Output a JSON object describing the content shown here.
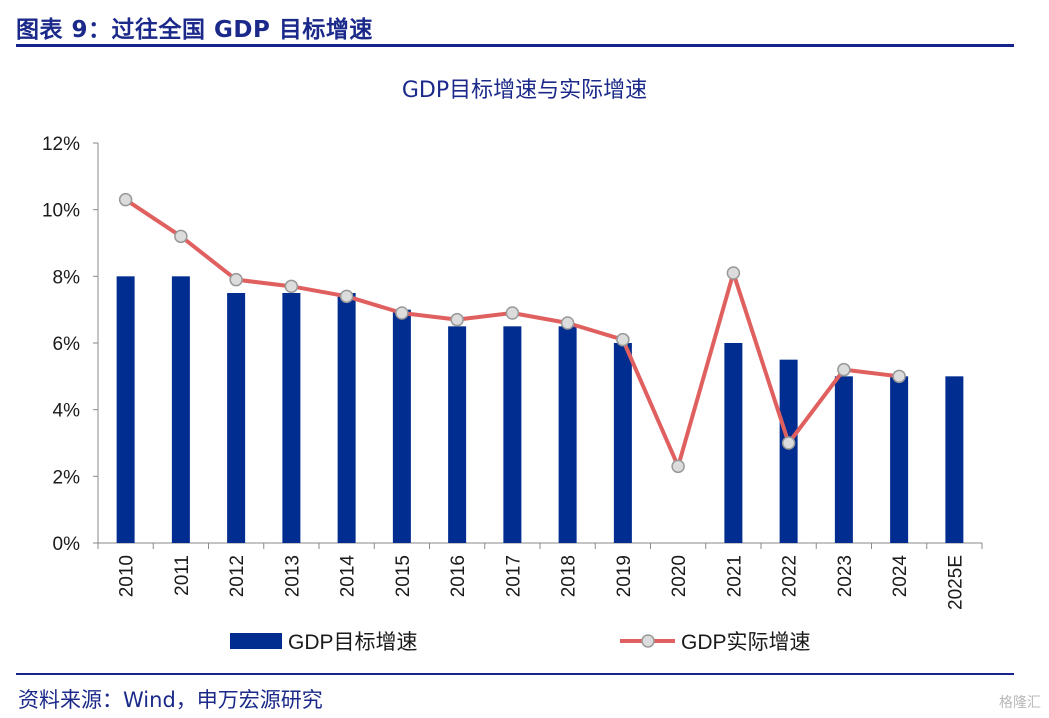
{
  "header": {
    "title": "图表 9：过往全国 GDP 目标增速"
  },
  "chart_data": {
    "type": "bar",
    "title": "GDP目标增速与实际增速",
    "categories": [
      "2010",
      "2011",
      "2012",
      "2013",
      "2014",
      "2015",
      "2016",
      "2017",
      "2018",
      "2019",
      "2020",
      "2021",
      "2022",
      "2023",
      "2024",
      "2025E"
    ],
    "ylim": [
      0,
      12
    ],
    "yticks": [
      "0%",
      "2%",
      "4%",
      "6%",
      "8%",
      "10%",
      "12%"
    ],
    "grid": false,
    "legend_position": "bottom",
    "series": [
      {
        "name": "GDP目标增速",
        "type": "bar",
        "color": "#002d8f",
        "values": [
          8,
          8,
          7.5,
          7.5,
          7.5,
          7,
          6.5,
          6.5,
          6.5,
          6,
          null,
          6,
          5.5,
          5,
          5,
          5
        ]
      },
      {
        "name": "GDP实际增速",
        "type": "line",
        "color": "#e06060",
        "marker_fill": "#dcdcdc",
        "marker_stroke": "#999999",
        "values": [
          10.3,
          9.2,
          7.9,
          7.7,
          7.4,
          6.9,
          6.7,
          6.9,
          6.6,
          6.1,
          2.3,
          8.1,
          3.0,
          5.2,
          5.0,
          null
        ]
      }
    ]
  },
  "footer": {
    "source": "资料来源：Wind，申万宏源研究",
    "watermark": "格隆汇"
  }
}
